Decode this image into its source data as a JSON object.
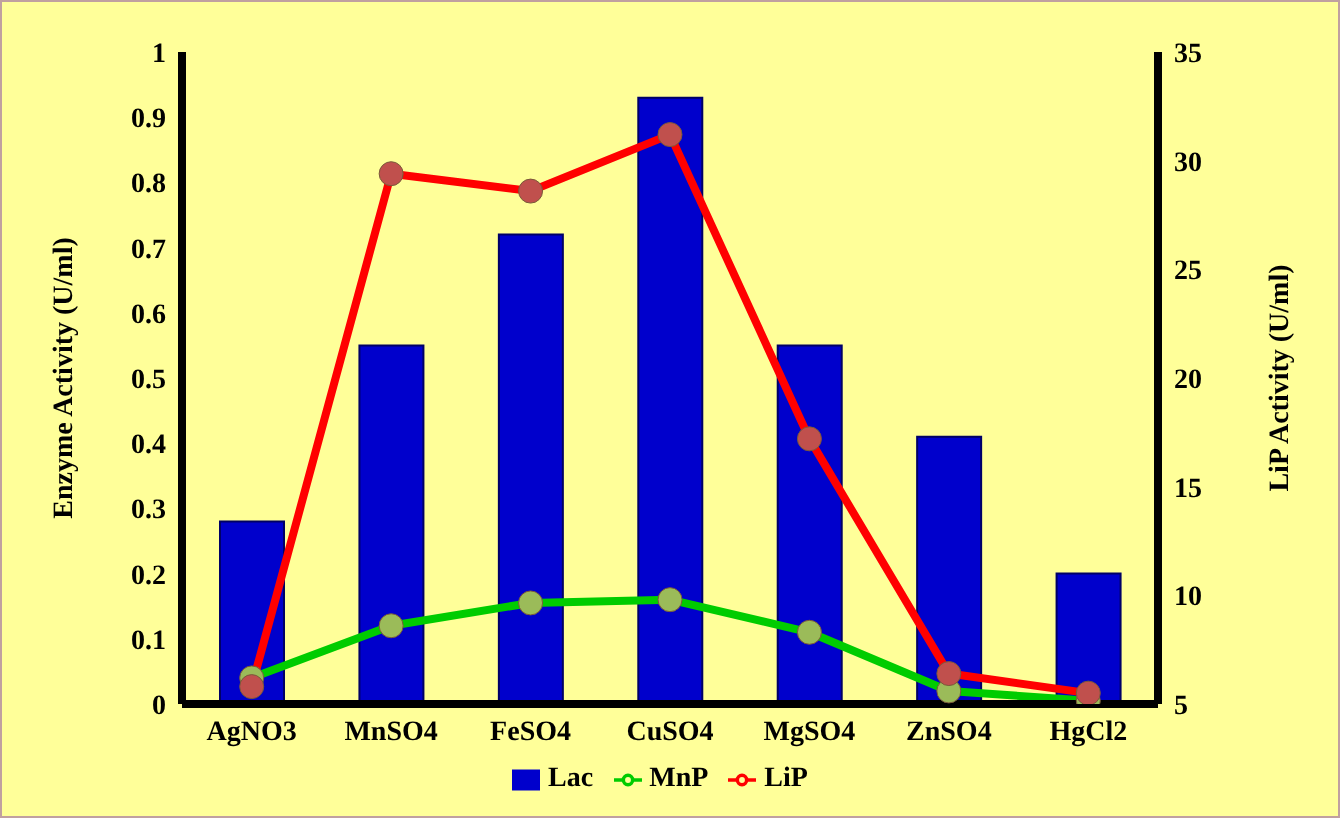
{
  "chart_data": {
    "type": "bar",
    "ylabel": "Enzyme Activity (U/ml)",
    "y2label": "LiP Activity (U/ml)",
    "categories": [
      "AgNO3",
      "MnSO4",
      "FeSO4",
      "CuSO4",
      "MgSO4",
      "ZnSO4",
      "HgCl2"
    ],
    "series": [
      {
        "name": "Lac",
        "color": "#0000cc",
        "values": [
          0.28,
          0.55,
          0.72,
          0.93,
          0.55,
          0.41,
          0.2
        ]
      },
      {
        "name": "MnP",
        "type": "line",
        "color": "#00cc00",
        "values": [
          0.04,
          0.12,
          0.155,
          0.16,
          0.11,
          0.02,
          0.005
        ]
      },
      {
        "name": "LiP",
        "type": "line",
        "color": "#ff0000",
        "axis": "y2",
        "values": [
          5.8,
          29.4,
          28.6,
          31.2,
          17.2,
          6.4,
          5.5
        ]
      }
    ],
    "ylim": [
      0,
      1
    ],
    "yticks": [
      0,
      0.1,
      0.2,
      0.3,
      0.4,
      0.5,
      0.6,
      0.7,
      0.8,
      0.9,
      1
    ],
    "y2lim": [
      5,
      35
    ],
    "y2ticks": [
      5,
      10,
      15,
      20,
      25,
      30,
      35
    ],
    "grid": false,
    "legend": "bottom",
    "marker": "circle"
  }
}
